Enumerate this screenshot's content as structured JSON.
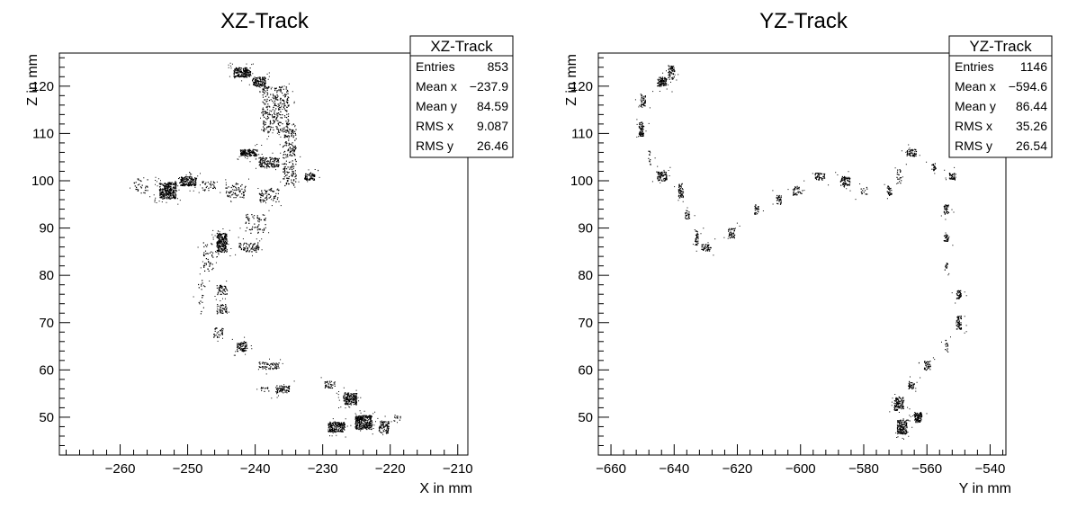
{
  "chart_data": [
    {
      "type": "scatter",
      "title": "XZ-Track",
      "xlabel": "X in mm",
      "ylabel": "Z in mm",
      "xlim": [
        -269,
        -208.5
      ],
      "ylim": [
        42,
        127
      ],
      "xticks": [
        -260,
        -250,
        -240,
        -230,
        -220,
        -210
      ],
      "yticks": [
        50,
        60,
        70,
        80,
        90,
        100,
        110,
        120
      ],
      "grid": false,
      "stats": {
        "title": "XZ-Track",
        "rows": [
          {
            "label": "Entries",
            "value": "853"
          },
          {
            "label": "Mean x",
            "value": "−237.9"
          },
          {
            "label": "Mean y",
            "value": "84.59"
          },
          {
            "label": "RMS x",
            "value": "9.087"
          },
          {
            "label": "RMS y",
            "value": "26.46"
          }
        ]
      },
      "clusters": [
        {
          "x": -242,
          "y": 123,
          "w": 2.5,
          "h": 2,
          "d": 14
        },
        {
          "x": -239.5,
          "y": 121,
          "w": 2,
          "h": 2,
          "d": 12
        },
        {
          "x": -237,
          "y": 115,
          "w": 4,
          "h": 10,
          "d": 3
        },
        {
          "x": -235,
          "y": 105,
          "w": 2,
          "h": 12,
          "d": 3
        },
        {
          "x": -241,
          "y": 106,
          "w": 2.5,
          "h": 1.5,
          "d": 14
        },
        {
          "x": -238,
          "y": 104,
          "w": 3,
          "h": 2,
          "d": 8
        },
        {
          "x": -232,
          "y": 101,
          "w": 1.5,
          "h": 1.5,
          "d": 12
        },
        {
          "x": -253,
          "y": 98,
          "w": 2.5,
          "h": 3.5,
          "d": 12
        },
        {
          "x": -250,
          "y": 100,
          "w": 2.5,
          "h": 2,
          "d": 12
        },
        {
          "x": -257,
          "y": 99,
          "w": 2,
          "h": 3,
          "d": 2
        },
        {
          "x": -247,
          "y": 99,
          "w": 2,
          "h": 2,
          "d": 3
        },
        {
          "x": -243,
          "y": 98,
          "w": 3,
          "h": 3,
          "d": 3
        },
        {
          "x": -238,
          "y": 97,
          "w": 3,
          "h": 3,
          "d": 3
        },
        {
          "x": -240,
          "y": 91,
          "w": 3,
          "h": 4,
          "d": 2
        },
        {
          "x": -245,
          "y": 87,
          "w": 1.5,
          "h": 4,
          "d": 14
        },
        {
          "x": -241,
          "y": 86,
          "w": 3,
          "h": 2,
          "d": 5
        },
        {
          "x": -247,
          "y": 84,
          "w": 1.5,
          "h": 6,
          "d": 2
        },
        {
          "x": -245,
          "y": 77,
          "w": 1.5,
          "h": 2,
          "d": 6
        },
        {
          "x": -245,
          "y": 73,
          "w": 1.5,
          "h": 2,
          "d": 6
        },
        {
          "x": -248,
          "y": 76,
          "w": 1,
          "h": 8,
          "d": 1
        },
        {
          "x": -245.5,
          "y": 68,
          "w": 1.5,
          "h": 2,
          "d": 4
        },
        {
          "x": -242,
          "y": 65,
          "w": 1.5,
          "h": 2,
          "d": 10
        },
        {
          "x": -238,
          "y": 61,
          "w": 3,
          "h": 1.5,
          "d": 5
        },
        {
          "x": -236,
          "y": 56,
          "w": 2,
          "h": 1.5,
          "d": 8
        },
        {
          "x": -238.5,
          "y": 56,
          "w": 1.5,
          "h": 1,
          "d": 3
        },
        {
          "x": -229,
          "y": 57,
          "w": 1.5,
          "h": 1.5,
          "d": 6
        },
        {
          "x": -226,
          "y": 54,
          "w": 2,
          "h": 2.5,
          "d": 12
        },
        {
          "x": -228,
          "y": 48,
          "w": 2.5,
          "h": 2,
          "d": 14
        },
        {
          "x": -224,
          "y": 49,
          "w": 2.5,
          "h": 3,
          "d": 14
        },
        {
          "x": -221,
          "y": 48,
          "w": 1.5,
          "h": 2.5,
          "d": 8
        },
        {
          "x": -219,
          "y": 50,
          "w": 1,
          "h": 1.5,
          "d": 3
        }
      ]
    },
    {
      "type": "scatter",
      "title": "YZ-Track",
      "xlabel": "Y in mm",
      "ylabel": "Z in mm",
      "xlim": [
        -664,
        -535
      ],
      "ylim": [
        42,
        127
      ],
      "xticks": [
        -660,
        -640,
        -620,
        -600,
        -580,
        -560,
        -540
      ],
      "yticks": [
        50,
        60,
        70,
        80,
        90,
        100,
        110,
        120
      ],
      "grid": false,
      "stats": {
        "title": "YZ-Track",
        "rows": [
          {
            "label": "Entries",
            "value": "1146"
          },
          {
            "label": "Mean x",
            "value": "−594.6"
          },
          {
            "label": "Mean y",
            "value": "86.44"
          },
          {
            "label": "RMS x",
            "value": "35.26"
          },
          {
            "label": "RMS y",
            "value": "26.54"
          }
        ]
      },
      "clusters": [
        {
          "x": -641,
          "y": 123,
          "w": 2,
          "h": 3,
          "d": 8
        },
        {
          "x": -644,
          "y": 121,
          "w": 3,
          "h": 2,
          "d": 12
        },
        {
          "x": -650,
          "y": 117,
          "w": 1.5,
          "h": 3,
          "d": 8
        },
        {
          "x": -650.5,
          "y": 111,
          "w": 1.5,
          "h": 3,
          "d": 12
        },
        {
          "x": -648,
          "y": 105,
          "w": 1,
          "h": 3,
          "d": 3
        },
        {
          "x": -644,
          "y": 101,
          "w": 3,
          "h": 2,
          "d": 10
        },
        {
          "x": -638,
          "y": 98,
          "w": 1.5,
          "h": 3,
          "d": 10
        },
        {
          "x": -636,
          "y": 93,
          "w": 1.5,
          "h": 2,
          "d": 6
        },
        {
          "x": -633,
          "y": 88,
          "w": 1,
          "h": 3,
          "d": 10
        },
        {
          "x": -630,
          "y": 86,
          "w": 3,
          "h": 1.5,
          "d": 8
        },
        {
          "x": -622,
          "y": 89,
          "w": 2,
          "h": 2,
          "d": 8
        },
        {
          "x": -614,
          "y": 94,
          "w": 1.5,
          "h": 2,
          "d": 8
        },
        {
          "x": -607,
          "y": 96,
          "w": 1.5,
          "h": 2,
          "d": 8
        },
        {
          "x": -601,
          "y": 98,
          "w": 3,
          "h": 2,
          "d": 5
        },
        {
          "x": -594,
          "y": 101,
          "w": 3,
          "h": 1.5,
          "d": 8
        },
        {
          "x": -586,
          "y": 100,
          "w": 3,
          "h": 2,
          "d": 10
        },
        {
          "x": -580,
          "y": 98,
          "w": 2,
          "h": 1.5,
          "d": 4
        },
        {
          "x": -572,
          "y": 98,
          "w": 1.5,
          "h": 2,
          "d": 8
        },
        {
          "x": -569,
          "y": 101,
          "w": 1.5,
          "h": 3,
          "d": 4
        },
        {
          "x": -565,
          "y": 106,
          "w": 3,
          "h": 1.5,
          "d": 10
        },
        {
          "x": -558,
          "y": 103,
          "w": 1.5,
          "h": 1.5,
          "d": 8
        },
        {
          "x": -552,
          "y": 101,
          "w": 2,
          "h": 1.5,
          "d": 10
        },
        {
          "x": -554,
          "y": 94,
          "w": 1.5,
          "h": 2,
          "d": 10
        },
        {
          "x": -554,
          "y": 88,
          "w": 1.5,
          "h": 1.5,
          "d": 10
        },
        {
          "x": -554,
          "y": 82,
          "w": 1,
          "h": 1.5,
          "d": 8
        },
        {
          "x": -550,
          "y": 76,
          "w": 1.5,
          "h": 2,
          "d": 10
        },
        {
          "x": -550,
          "y": 70,
          "w": 1.5,
          "h": 3,
          "d": 10
        },
        {
          "x": -554,
          "y": 65,
          "w": 1,
          "h": 3,
          "d": 4
        },
        {
          "x": -560,
          "y": 61,
          "w": 2,
          "h": 2,
          "d": 8
        },
        {
          "x": -565,
          "y": 57,
          "w": 2,
          "h": 2,
          "d": 8
        },
        {
          "x": -569,
          "y": 53,
          "w": 3,
          "h": 3,
          "d": 10
        },
        {
          "x": -563,
          "y": 50,
          "w": 2.5,
          "h": 2,
          "d": 14
        },
        {
          "x": -568,
          "y": 48,
          "w": 3,
          "h": 3,
          "d": 14
        }
      ]
    }
  ]
}
